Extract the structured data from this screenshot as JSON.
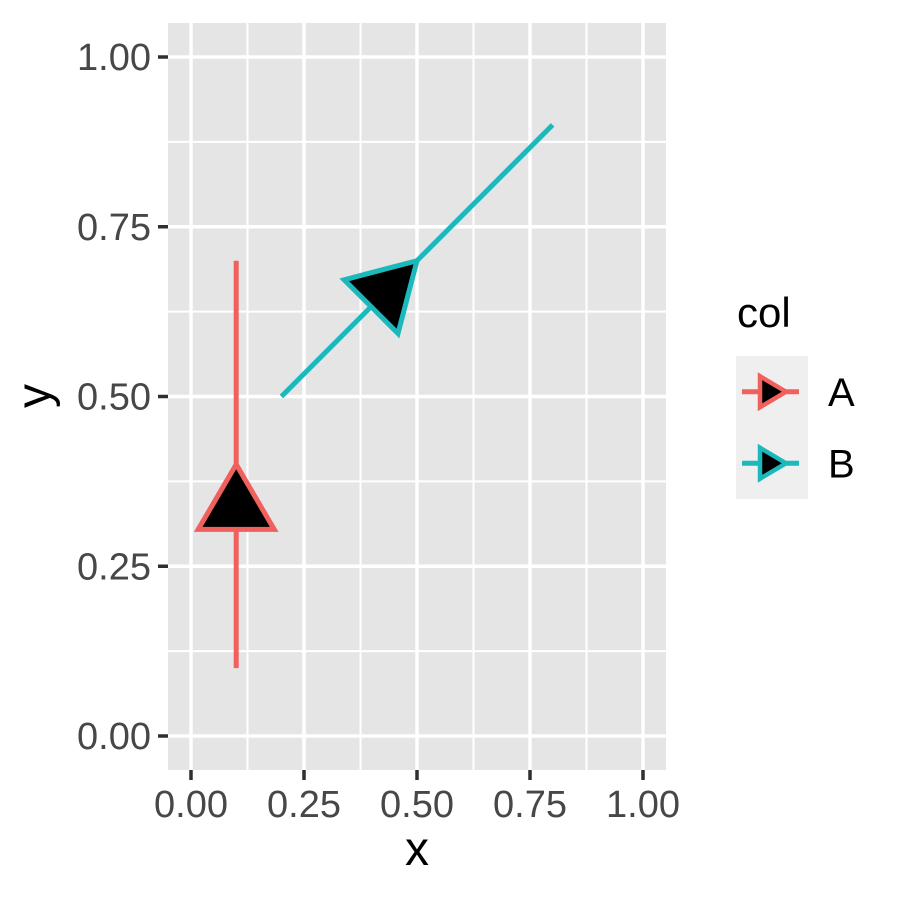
{
  "chart_data": {
    "type": "line",
    "title": "",
    "xlabel": "x",
    "ylabel": "y",
    "xlim": [
      -0.05,
      1.05
    ],
    "ylim": [
      -0.05,
      1.05
    ],
    "grid": "on",
    "legend_position": "right",
    "x_ticks": {
      "values": [
        0,
        0.25,
        0.5,
        0.75,
        1
      ],
      "labels": [
        "0.00",
        "0.25",
        "0.50",
        "0.75",
        "1.00"
      ]
    },
    "y_ticks": {
      "values": [
        0,
        0.25,
        0.5,
        0.75,
        1
      ],
      "labels": [
        "0.00",
        "0.25",
        "0.50",
        "0.75",
        "1.00"
      ]
    },
    "series": [
      {
        "name": "A",
        "color": "#F0605C",
        "segment": {
          "x1": 0.1,
          "y1": 0.1,
          "x2": 0.1,
          "y2": 0.7
        },
        "arrow": "closed-triangle-tip-at-midpoint",
        "arrow_tip": {
          "x": 0.1,
          "y": 0.4
        }
      },
      {
        "name": "B",
        "color": "#1CB9BC",
        "segment": {
          "x1": 0.2,
          "y1": 0.5,
          "x2": 0.8,
          "y2": 0.9
        },
        "arrow": "closed-triangle-tip-at-midpoint",
        "arrow_tip": {
          "x": 0.5,
          "y": 0.7
        }
      }
    ]
  },
  "legend": {
    "title": "col",
    "entries": [
      {
        "label": "A",
        "color": "#F0605C"
      },
      {
        "label": "B",
        "color": "#1CB9BC"
      }
    ]
  },
  "colors": {
    "background": "#FFFFFF",
    "panel_background": "#E5E5E5",
    "gridline": "#FFFFFF",
    "tick_mark": "#2F2F2F",
    "tick_label": "#474747",
    "axis_title": "#000000",
    "legend_key_background": "#EFEFEF",
    "arrow_fill": "#000000"
  }
}
